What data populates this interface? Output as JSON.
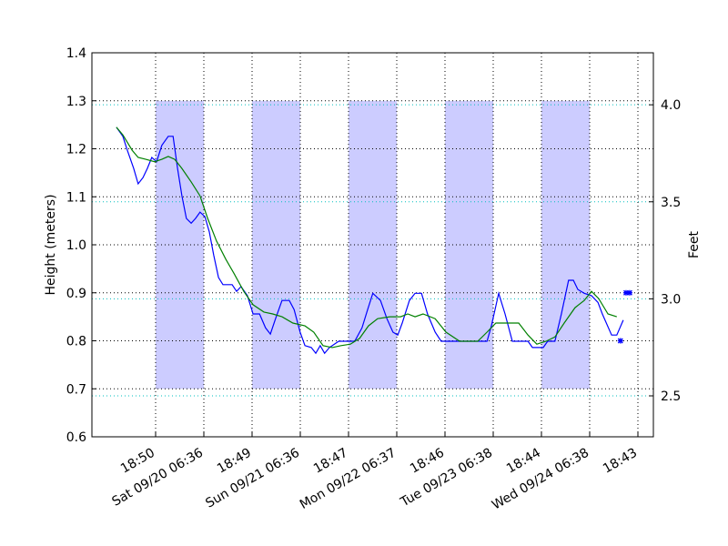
{
  "chart_data": {
    "type": "line",
    "ylabel": "Height (meters)",
    "y2label": "Feet",
    "xlim": [
      0,
      139.7
    ],
    "xticks": [
      {
        "value": 15.85,
        "label": "18:50"
      },
      {
        "value": 27.85,
        "label": "Sat 09/20 06:36"
      },
      {
        "value": 39.85,
        "label": "18:49"
      },
      {
        "value": 51.85,
        "label": "Sun 09/21 06:36"
      },
      {
        "value": 63.85,
        "label": "18:47"
      },
      {
        "value": 75.85,
        "label": "Mon 09/22 06:37"
      },
      {
        "value": 87.85,
        "label": "18:46"
      },
      {
        "value": 99.85,
        "label": "Tue 09/23 06:38"
      },
      {
        "value": 111.85,
        "label": "18:44"
      },
      {
        "value": 123.85,
        "label": "Wed 09/24 06:38"
      },
      {
        "value": 135.85,
        "label": "18:43"
      }
    ],
    "ylim": [
      0.6,
      1.4
    ],
    "yticks": [
      0.6,
      0.7,
      0.8,
      0.9,
      {
        "value": 1.0,
        "label": "1.0"
      },
      1.1,
      1.2,
      1.3,
      1.4
    ],
    "y2lim": [
      2.289,
      4.268
    ],
    "y2ticks": [
      2.5,
      {
        "value": 3.0,
        "label": "3.0"
      },
      3.5,
      {
        "value": 4.0,
        "label": "4.0"
      }
    ],
    "grid": true,
    "grid_color": "#000000",
    "y2grid_color": "#00bfbf",
    "shade_color": "#ccccff",
    "shaded_regions": [
      {
        "x": [
          15.85,
          27.85
        ],
        "y": [
          0.7,
          1.3
        ]
      },
      {
        "x": [
          39.85,
          51.85
        ],
        "y": [
          0.7,
          1.3
        ]
      },
      {
        "x": [
          63.85,
          75.85
        ],
        "y": [
          0.7,
          1.3
        ]
      },
      {
        "x": [
          87.85,
          99.85
        ],
        "y": [
          0.7,
          1.3
        ]
      },
      {
        "x": [
          111.85,
          123.85
        ],
        "y": [
          0.7,
          1.3
        ]
      }
    ],
    "series": [
      {
        "color": "#0000ff",
        "x": [
          6.1,
          7.7,
          8.8,
          10.4,
          11.5,
          12.7,
          13.8,
          14.9,
          16.1,
          17.4,
          19.0,
          20.2,
          21.3,
          22.4,
          23.5,
          24.7,
          25.8,
          26.9,
          28.1,
          29.2,
          30.3,
          31.5,
          32.6,
          34.9,
          36.0,
          37.1,
          38.7,
          40.1,
          41.7,
          43.2,
          44.4,
          45.7,
          47.3,
          49.1,
          50.3,
          51.8,
          53.0,
          54.6,
          55.7,
          56.8,
          57.9,
          59.1,
          61.4,
          65.4,
          67.2,
          68.6,
          69.9,
          71.8,
          73.4,
          74.9,
          76.1,
          77.2,
          79.0,
          80.4,
          82.0,
          83.5,
          85.4,
          86.9,
          98.3,
          99.4,
          101.2,
          102.8,
          104.6,
          108.5,
          109.6,
          112.3,
          113.4,
          115.2,
          116.8,
          118.6,
          119.8,
          120.9,
          122.5,
          124.3,
          125.9,
          127.0,
          129.3,
          130.6,
          132.2
        ],
        "values": [
          1.245,
          1.226,
          1.197,
          1.159,
          1.127,
          1.14,
          1.159,
          1.182,
          1.173,
          1.207,
          1.226,
          1.226,
          1.159,
          1.102,
          1.055,
          1.045,
          1.055,
          1.068,
          1.059,
          1.027,
          0.979,
          0.932,
          0.917,
          0.917,
          0.903,
          0.913,
          0.894,
          0.856,
          0.856,
          0.827,
          0.814,
          0.846,
          0.884,
          0.884,
          0.865,
          0.818,
          0.79,
          0.786,
          0.774,
          0.79,
          0.774,
          0.786,
          0.799,
          0.799,
          0.827,
          0.865,
          0.899,
          0.884,
          0.846,
          0.818,
          0.812,
          0.837,
          0.884,
          0.899,
          0.899,
          0.856,
          0.818,
          0.799,
          0.799,
          0.831,
          0.899,
          0.856,
          0.799,
          0.799,
          0.786,
          0.786,
          0.799,
          0.799,
          0.856,
          0.926,
          0.926,
          0.907,
          0.899,
          0.894,
          0.88,
          0.856,
          0.812,
          0.812,
          0.843
        ]
      },
      {
        "color": "#008000",
        "x": [
          6.1,
          7.7,
          10.0,
          11.5,
          13.4,
          15.6,
          17.4,
          19.0,
          20.6,
          22.4,
          24.7,
          26.9,
          28.8,
          31.0,
          33.3,
          35.3,
          37.8,
          40.1,
          42.8,
          45.0,
          47.3,
          50.0,
          53.0,
          55.2,
          57.5,
          59.8,
          62.0,
          64.3,
          66.6,
          68.8,
          71.1,
          74.1,
          76.8,
          78.6,
          80.4,
          82.4,
          85.4,
          88.1,
          91.5,
          96.0,
          98.3,
          100.5,
          106.2,
          108.5,
          110.7,
          113.0,
          115.2,
          117.5,
          120.2,
          122.5,
          124.3,
          126.1,
          128.4,
          130.6
        ],
        "values": [
          1.245,
          1.229,
          1.197,
          1.182,
          1.178,
          1.173,
          1.178,
          1.184,
          1.178,
          1.159,
          1.131,
          1.102,
          1.055,
          1.008,
          0.97,
          0.941,
          0.903,
          0.875,
          0.86,
          0.856,
          0.85,
          0.837,
          0.831,
          0.818,
          0.79,
          0.786,
          0.79,
          0.793,
          0.805,
          0.831,
          0.846,
          0.85,
          0.85,
          0.856,
          0.85,
          0.856,
          0.846,
          0.818,
          0.799,
          0.799,
          0.818,
          0.837,
          0.837,
          0.812,
          0.793,
          0.799,
          0.808,
          0.837,
          0.869,
          0.884,
          0.903,
          0.888,
          0.856,
          0.85
        ]
      }
    ],
    "markers": {
      "color": "#0000ff",
      "x": [
        131.5,
        132.9,
        133.8
      ],
      "values": [
        0.8,
        0.9,
        0.9
      ]
    }
  }
}
